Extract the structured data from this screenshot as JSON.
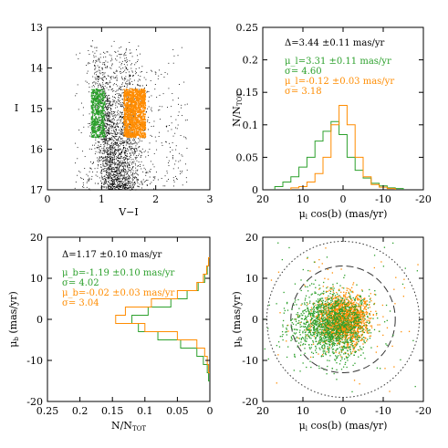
{
  "colors": {
    "green": "#2ca02c",
    "orange": "#ff8c00",
    "black": "#000000"
  },
  "chart_data": [
    {
      "type": "scatter",
      "panel": "top-left",
      "xlabel": "V−I",
      "ylabel": "I",
      "xlim": [
        0,
        3
      ],
      "ylim": [
        17,
        13
      ],
      "xticks": [
        "0",
        "1",
        "2",
        "3"
      ],
      "yticks": [
        "13",
        "14",
        "15",
        "16",
        "17"
      ],
      "series": [
        {
          "color": "black",
          "x_range": [
            0.5,
            2.6
          ],
          "y_range": [
            13.3,
            17
          ],
          "sequences": [
            {
              "x_start": 0.95,
              "y_start": 13.5,
              "x_end": 1.2,
              "y_end": 17
            },
            {
              "x_start": 1.45,
              "y_start": 13.3,
              "x_end": 1.45,
              "y_end": 17
            }
          ]
        },
        {
          "color": "green",
          "x_range": [
            0.8,
            1.05
          ],
          "y_range": [
            14.5,
            15.7
          ]
        },
        {
          "color": "orange",
          "x_range": [
            1.4,
            1.8
          ],
          "y_range": [
            14.5,
            15.7
          ]
        }
      ]
    },
    {
      "type": "line",
      "panel": "top-right",
      "xlabel": "μ_l cos(b) (mas/yr)",
      "ylabel": "N/N_TOT",
      "xlim": [
        20,
        -20
      ],
      "ylim": [
        0,
        0.25
      ],
      "xticks": [
        "20",
        "10",
        "0",
        "-10",
        "-20"
      ],
      "yticks": [
        "0",
        "0.05",
        "0.1",
        "0.15",
        "0.2",
        "0.25"
      ],
      "annotation": "Δ=3.44  ±0.11  mas/yr",
      "series": [
        {
          "color": "green",
          "stats": [
            "μ_l=3.31 ±0.11 mas/yr",
            "σ= 4.60"
          ],
          "x": [
            16,
            14,
            12,
            10,
            8,
            6,
            4,
            2,
            0,
            -2,
            -4,
            -6,
            -8,
            -10,
            -12,
            -14
          ],
          "values": [
            0.005,
            0.012,
            0.02,
            0.035,
            0.05,
            0.075,
            0.09,
            0.105,
            0.085,
            0.05,
            0.03,
            0.018,
            0.01,
            0.006,
            0.003,
            0.002
          ]
        },
        {
          "color": "orange",
          "stats": [
            "μ_l=-0.12 ±0.03 mas/yr",
            "σ= 3.18"
          ],
          "x": [
            12,
            10,
            8,
            6,
            4,
            2,
            0,
            -2,
            -4,
            -6,
            -8,
            -10,
            -12
          ],
          "values": [
            0.003,
            0.005,
            0.012,
            0.025,
            0.05,
            0.1,
            0.13,
            0.1,
            0.05,
            0.02,
            0.008,
            0.004,
            0.002
          ]
        }
      ]
    },
    {
      "type": "line",
      "panel": "bottom-left",
      "xlabel": "N/N_TOT",
      "ylabel": "μ_b (mas/yr)",
      "xlim": [
        0.25,
        0
      ],
      "ylim": [
        -20,
        20
      ],
      "xticks": [
        "0.25",
        "0.2",
        "0.15",
        "0.1",
        "0.05",
        "0"
      ],
      "yticks": [
        "-20",
        "-10",
        "0",
        "10",
        "20"
      ],
      "annotation": "Δ=1.17  ±0.10  mas/yr",
      "series": [
        {
          "color": "green",
          "stats": [
            "μ_b=-1.19 ±0.10 mas/yr",
            "σ= 4.02"
          ],
          "y": [
            14,
            12,
            10,
            8,
            6,
            4,
            2,
            0,
            -2,
            -4,
            -6,
            -8,
            -10,
            -12,
            -14
          ],
          "values": [
            0.002,
            0.004,
            0.008,
            0.018,
            0.035,
            0.06,
            0.095,
            0.12,
            0.11,
            0.08,
            0.045,
            0.02,
            0.01,
            0.004,
            0.002
          ]
        },
        {
          "color": "orange",
          "stats": [
            "μ_b=-0.02 ±0.03 mas/yr",
            "σ= 3.04"
          ],
          "y": [
            14,
            12,
            10,
            8,
            6,
            4,
            2,
            0,
            -2,
            -4,
            -6,
            -8,
            -10,
            -12
          ],
          "values": [
            0.002,
            0.005,
            0.01,
            0.02,
            0.05,
            0.09,
            0.13,
            0.145,
            0.1,
            0.05,
            0.02,
            0.008,
            0.004,
            0.002
          ]
        }
      ]
    },
    {
      "type": "scatter",
      "panel": "bottom-right",
      "xlabel": "μ_l cos(b) (mas/yr)",
      "ylabel": "μ_b (mas/yr)",
      "xlim": [
        20,
        -20
      ],
      "ylim": [
        -20,
        20
      ],
      "xticks": [
        "20",
        "10",
        "0",
        "-10",
        "-20"
      ],
      "yticks": [
        "-20",
        "-10",
        "0",
        "10",
        "20"
      ],
      "series": [
        {
          "color": "orange",
          "center": [
            0,
            0
          ],
          "sigma": [
            3.2,
            3.0
          ]
        },
        {
          "color": "green",
          "center": [
            3.3,
            -1.2
          ],
          "sigma": [
            4.6,
            4.0
          ]
        }
      ],
      "circles": [
        {
          "radius": 13,
          "style": "dashed"
        },
        {
          "radius": 19,
          "style": "dotted"
        }
      ]
    }
  ]
}
